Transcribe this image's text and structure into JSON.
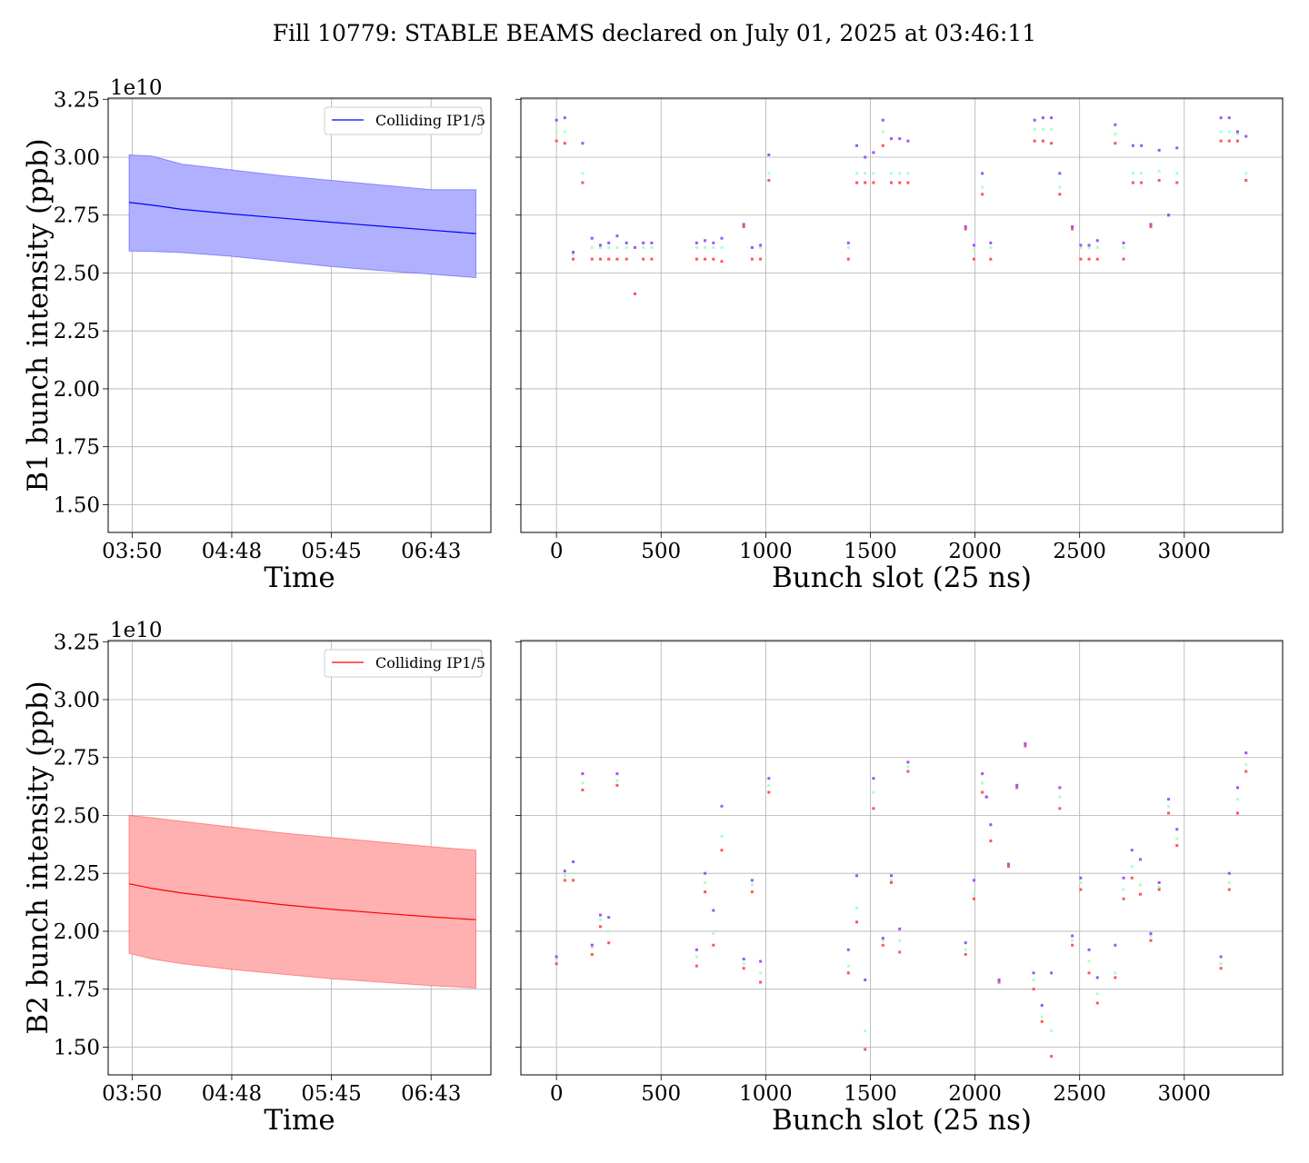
{
  "figure": {
    "title": "Fill 10779: STABLE BEAMS declared on July 01, 2025 at 03:46:11"
  },
  "chart_data": [
    {
      "id": "b1_time",
      "type": "line",
      "title": "",
      "xlabel": "Time",
      "ylabel": "B1 bunch intensity (ppb)",
      "y_scale_label": "1e10",
      "ylim": [
        1.38,
        3.255
      ],
      "yticks": [
        "1.50",
        "1.75",
        "2.00",
        "2.25",
        "2.50",
        "2.75",
        "3.00",
        "3.25"
      ],
      "xtick_labels": [
        "03:50",
        "04:48",
        "05:45",
        "06:43"
      ],
      "xtick_values": [
        0,
        1,
        2,
        3
      ],
      "xlim": [
        -0.24,
        3.6
      ],
      "grid": true,
      "legend": "top-right",
      "color": "#0000ff",
      "band_color": "#b0b0ff",
      "series": [
        {
          "name": "Colliding IP1/5",
          "x": [
            -0.03,
            0.2,
            0.5,
            1.0,
            1.5,
            2.0,
            2.5,
            3.0,
            3.45
          ],
          "mean": [
            2.805,
            2.793,
            2.775,
            2.755,
            2.737,
            2.719,
            2.702,
            2.685,
            2.67
          ],
          "upper": [
            3.01,
            3.005,
            2.97,
            2.945,
            2.92,
            2.9,
            2.88,
            2.86,
            2.86
          ],
          "lower": [
            2.595,
            2.593,
            2.588,
            2.572,
            2.55,
            2.528,
            2.51,
            2.495,
            2.48
          ]
        }
      ]
    },
    {
      "id": "b1_slot",
      "type": "scatter",
      "title": "",
      "xlabel": "Bunch slot (25 ns)",
      "ylabel": "",
      "ylim": [
        1.38,
        3.255
      ],
      "xlim": [
        -170,
        3470
      ],
      "xticks": [
        "0",
        "500",
        "1000",
        "1500",
        "2000",
        "2500",
        "3000"
      ],
      "xtick_values": [
        0,
        500,
        1000,
        1500,
        2000,
        2500,
        3000
      ],
      "grid": true,
      "colors": {
        "max": "#9955ff",
        "mid": "#aaffcc",
        "min": "#ff5555"
      },
      "points": [
        {
          "x": 0,
          "max": 3.16,
          "mid": 3.11,
          "min": 3.07
        },
        {
          "x": 40,
          "max": 3.17,
          "mid": 3.11,
          "min": 3.06
        },
        {
          "x": 80,
          "max": 2.59,
          "mid": 2.58,
          "min": 2.56
        },
        {
          "x": 125,
          "max": 3.06,
          "mid": 2.93,
          "min": 2.89
        },
        {
          "x": 170,
          "max": 2.65,
          "mid": 2.61,
          "min": 2.56
        },
        {
          "x": 210,
          "max": 2.62,
          "mid": 2.61,
          "min": 2.56
        },
        {
          "x": 250,
          "max": 2.63,
          "mid": 2.61,
          "min": 2.56
        },
        {
          "x": 290,
          "max": 2.66,
          "mid": 2.61,
          "min": 2.56
        },
        {
          "x": 335,
          "max": 2.63,
          "mid": 2.61,
          "min": 2.56
        },
        {
          "x": 375,
          "max": 2.61,
          "mid": 2.61,
          "min": 2.41
        },
        {
          "x": 415,
          "max": 2.63,
          "mid": 2.61,
          "min": 2.56
        },
        {
          "x": 455,
          "max": 2.63,
          "mid": 2.61,
          "min": 2.56
        },
        {
          "x": 670,
          "max": 2.63,
          "mid": 2.61,
          "min": 2.56
        },
        {
          "x": 710,
          "max": 2.64,
          "mid": 2.61,
          "min": 2.56
        },
        {
          "x": 750,
          "max": 2.63,
          "mid": 2.61,
          "min": 2.56
        },
        {
          "x": 790,
          "max": 2.65,
          "mid": 2.61,
          "min": 2.55
        },
        {
          "x": 895,
          "max": 2.71,
          "mid": 2.71,
          "min": 2.7
        },
        {
          "x": 935,
          "max": 2.61,
          "mid": 2.61,
          "min": 2.56
        },
        {
          "x": 975,
          "max": 2.62,
          "mid": 2.61,
          "min": 2.56
        },
        {
          "x": 1015,
          "max": 3.01,
          "mid": 2.93,
          "min": 2.9
        },
        {
          "x": 1395,
          "max": 2.63,
          "mid": 2.61,
          "min": 2.56
        },
        {
          "x": 1435,
          "max": 3.05,
          "mid": 2.93,
          "min": 2.89
        },
        {
          "x": 1475,
          "max": 3.0,
          "mid": 2.93,
          "min": 2.89
        },
        {
          "x": 1515,
          "max": 3.02,
          "mid": 2.93,
          "min": 2.89
        },
        {
          "x": 1560,
          "max": 3.16,
          "mid": 3.11,
          "min": 3.05
        },
        {
          "x": 1600,
          "max": 3.08,
          "mid": 2.93,
          "min": 2.89
        },
        {
          "x": 1640,
          "max": 3.08,
          "mid": 2.93,
          "min": 2.89
        },
        {
          "x": 1680,
          "max": 3.07,
          "mid": 2.93,
          "min": 2.89
        },
        {
          "x": 1955,
          "max": 2.7,
          "mid": 2.69,
          "min": 2.69
        },
        {
          "x": 1995,
          "max": 2.62,
          "mid": 2.6,
          "min": 2.56
        },
        {
          "x": 2035,
          "max": 2.93,
          "mid": 2.87,
          "min": 2.84
        },
        {
          "x": 2075,
          "max": 2.63,
          "mid": 2.61,
          "min": 2.56
        },
        {
          "x": 2285,
          "max": 3.16,
          "mid": 3.12,
          "min": 3.07
        },
        {
          "x": 2325,
          "max": 3.17,
          "mid": 3.12,
          "min": 3.07
        },
        {
          "x": 2365,
          "max": 3.17,
          "mid": 3.12,
          "min": 3.06
        },
        {
          "x": 2405,
          "max": 2.93,
          "mid": 2.87,
          "min": 2.84
        },
        {
          "x": 2465,
          "max": 2.7,
          "mid": 2.7,
          "min": 2.69
        },
        {
          "x": 2505,
          "max": 2.62,
          "mid": 2.61,
          "min": 2.56
        },
        {
          "x": 2545,
          "max": 2.62,
          "mid": 2.61,
          "min": 2.56
        },
        {
          "x": 2585,
          "max": 2.64,
          "mid": 2.61,
          "min": 2.56
        },
        {
          "x": 2670,
          "max": 3.14,
          "mid": 3.1,
          "min": 3.06
        },
        {
          "x": 2710,
          "max": 2.63,
          "mid": 2.61,
          "min": 2.56
        },
        {
          "x": 2755,
          "max": 3.05,
          "mid": 2.93,
          "min": 2.89
        },
        {
          "x": 2795,
          "max": 3.05,
          "mid": 2.93,
          "min": 2.89
        },
        {
          "x": 2840,
          "max": 2.71,
          "mid": 2.7,
          "min": 2.7
        },
        {
          "x": 2880,
          "max": 3.03,
          "mid": 2.94,
          "min": 2.9
        },
        {
          "x": 2925,
          "max": 2.75,
          "mid": 2.75,
          "min": 2.75
        },
        {
          "x": 2965,
          "max": 3.04,
          "mid": 2.93,
          "min": 2.89
        },
        {
          "x": 3175,
          "max": 3.17,
          "mid": 3.11,
          "min": 3.07
        },
        {
          "x": 3215,
          "max": 3.17,
          "mid": 3.11,
          "min": 3.07
        },
        {
          "x": 3255,
          "max": 3.11,
          "mid": 3.1,
          "min": 3.07
        },
        {
          "x": 3295,
          "max": 3.09,
          "mid": 2.93,
          "min": 2.9
        }
      ]
    },
    {
      "id": "b2_time",
      "type": "line",
      "title": "",
      "xlabel": "Time",
      "ylabel": "B2 bunch intensity (ppb)",
      "y_scale_label": "1e10",
      "ylim": [
        1.38,
        3.255
      ],
      "yticks": [
        "1.50",
        "1.75",
        "2.00",
        "2.25",
        "2.50",
        "2.75",
        "3.00",
        "3.25"
      ],
      "xtick_labels": [
        "03:50",
        "04:48",
        "05:45",
        "06:43"
      ],
      "xtick_values": [
        0,
        1,
        2,
        3
      ],
      "xlim": [
        -0.24,
        3.6
      ],
      "grid": true,
      "legend": "top-right",
      "color": "#ff0000",
      "band_color": "#ffb0b0",
      "series": [
        {
          "name": "Colliding IP1/5",
          "x": [
            -0.03,
            0.2,
            0.5,
            1.0,
            1.5,
            2.0,
            2.5,
            3.0,
            3.45
          ],
          "mean": [
            2.205,
            2.185,
            2.165,
            2.14,
            2.115,
            2.095,
            2.078,
            2.062,
            2.05
          ],
          "upper": [
            2.5,
            2.49,
            2.475,
            2.45,
            2.425,
            2.405,
            2.385,
            2.365,
            2.35
          ],
          "lower": [
            1.905,
            1.88,
            1.86,
            1.835,
            1.815,
            1.795,
            1.78,
            1.765,
            1.755
          ]
        }
      ]
    },
    {
      "id": "b2_slot",
      "type": "scatter",
      "title": "",
      "xlabel": "Bunch slot (25 ns)",
      "ylabel": "",
      "ylim": [
        1.38,
        3.255
      ],
      "xlim": [
        -170,
        3470
      ],
      "xticks": [
        "0",
        "500",
        "1000",
        "1500",
        "2000",
        "2500",
        "3000"
      ],
      "xtick_values": [
        0,
        500,
        1000,
        1500,
        2000,
        2500,
        3000
      ],
      "grid": true,
      "colors": {
        "max": "#9955ff",
        "mid": "#aaffcc",
        "min": "#ff5555"
      },
      "points": [
        {
          "x": 0,
          "max": 1.89,
          "mid": 1.88,
          "min": 1.86
        },
        {
          "x": 40,
          "max": 2.26,
          "mid": 2.24,
          "min": 2.22
        },
        {
          "x": 80,
          "max": 2.3,
          "mid": 2.25,
          "min": 2.22
        },
        {
          "x": 125,
          "max": 2.68,
          "mid": 2.64,
          "min": 2.61
        },
        {
          "x": 170,
          "max": 1.94,
          "mid": 1.93,
          "min": 1.9
        },
        {
          "x": 210,
          "max": 2.07,
          "mid": 2.05,
          "min": 2.02
        },
        {
          "x": 250,
          "max": 2.06,
          "mid": 2.0,
          "min": 1.95
        },
        {
          "x": 290,
          "max": 2.68,
          "mid": 2.65,
          "min": 2.63
        },
        {
          "x": 670,
          "max": 1.92,
          "mid": 1.89,
          "min": 1.85
        },
        {
          "x": 710,
          "max": 2.25,
          "mid": 2.21,
          "min": 2.17
        },
        {
          "x": 750,
          "max": 2.09,
          "mid": 1.99,
          "min": 1.94
        },
        {
          "x": 790,
          "max": 2.54,
          "mid": 2.41,
          "min": 2.35
        },
        {
          "x": 895,
          "max": 1.88,
          "mid": 1.86,
          "min": 1.84
        },
        {
          "x": 935,
          "max": 2.22,
          "mid": 2.2,
          "min": 2.17
        },
        {
          "x": 975,
          "max": 1.87,
          "mid": 1.82,
          "min": 1.78
        },
        {
          "x": 1015,
          "max": 2.66,
          "mid": 2.63,
          "min": 2.6
        },
        {
          "x": 1395,
          "max": 1.92,
          "mid": 1.85,
          "min": 1.82
        },
        {
          "x": 1435,
          "max": 2.24,
          "mid": 2.1,
          "min": 2.04
        },
        {
          "x": 1475,
          "max": 1.79,
          "mid": 1.57,
          "min": 1.49
        },
        {
          "x": 1515,
          "max": 2.66,
          "mid": 2.6,
          "min": 2.53
        },
        {
          "x": 1560,
          "max": 1.97,
          "mid": 1.96,
          "min": 1.94
        },
        {
          "x": 1600,
          "max": 2.24,
          "mid": 2.22,
          "min": 2.21
        },
        {
          "x": 1640,
          "max": 2.01,
          "mid": 1.96,
          "min": 1.91
        },
        {
          "x": 1680,
          "max": 2.73,
          "mid": 2.71,
          "min": 2.69
        },
        {
          "x": 1955,
          "max": 1.95,
          "mid": 1.92,
          "min": 1.9
        },
        {
          "x": 1995,
          "max": 2.22,
          "mid": 2.16,
          "min": 2.14
        },
        {
          "x": 2035,
          "max": 2.68,
          "mid": 2.64,
          "min": 2.6
        },
        {
          "x": 2055,
          "max": 2.58,
          "mid": 2.58,
          "min": 2.58
        },
        {
          "x": 2075,
          "max": 2.46,
          "mid": 2.46,
          "min": 2.39
        },
        {
          "x": 2115,
          "max": 1.79,
          "mid": 1.79,
          "min": 1.78
        },
        {
          "x": 2160,
          "max": 2.29,
          "mid": 2.28,
          "min": 2.28
        },
        {
          "x": 2200,
          "max": 2.63,
          "mid": 2.63,
          "min": 2.62
        },
        {
          "x": 2240,
          "max": 2.81,
          "mid": 2.8,
          "min": 2.8
        },
        {
          "x": 2280,
          "max": 1.82,
          "mid": 1.79,
          "min": 1.75
        },
        {
          "x": 2320,
          "max": 1.68,
          "mid": 1.63,
          "min": 1.61
        },
        {
          "x": 2365,
          "max": 1.82,
          "mid": 1.57,
          "min": 1.46
        },
        {
          "x": 2405,
          "max": 2.62,
          "mid": 2.58,
          "min": 2.53
        },
        {
          "x": 2465,
          "max": 1.98,
          "mid": 1.96,
          "min": 1.94
        },
        {
          "x": 2505,
          "max": 2.23,
          "mid": 2.21,
          "min": 2.18
        },
        {
          "x": 2545,
          "max": 1.92,
          "mid": 1.87,
          "min": 1.82
        },
        {
          "x": 2585,
          "max": 1.8,
          "mid": 1.73,
          "min": 1.69
        },
        {
          "x": 2670,
          "max": 1.94,
          "mid": 1.82,
          "min": 1.8
        },
        {
          "x": 2710,
          "max": 2.23,
          "mid": 2.18,
          "min": 2.14
        },
        {
          "x": 2750,
          "max": 2.35,
          "mid": 2.28,
          "min": 2.23
        },
        {
          "x": 2790,
          "max": 2.31,
          "mid": 2.2,
          "min": 2.16
        },
        {
          "x": 2840,
          "max": 1.99,
          "mid": 1.98,
          "min": 1.96
        },
        {
          "x": 2880,
          "max": 2.21,
          "mid": 2.19,
          "min": 2.18
        },
        {
          "x": 2925,
          "max": 2.57,
          "mid": 2.54,
          "min": 2.51
        },
        {
          "x": 2965,
          "max": 2.44,
          "mid": 2.4,
          "min": 2.37
        },
        {
          "x": 3175,
          "max": 1.89,
          "mid": 1.86,
          "min": 1.84
        },
        {
          "x": 3215,
          "max": 2.25,
          "mid": 2.21,
          "min": 2.18
        },
        {
          "x": 3255,
          "max": 2.62,
          "mid": 2.57,
          "min": 2.51
        },
        {
          "x": 3295,
          "max": 2.77,
          "mid": 2.72,
          "min": 2.69
        }
      ]
    }
  ]
}
